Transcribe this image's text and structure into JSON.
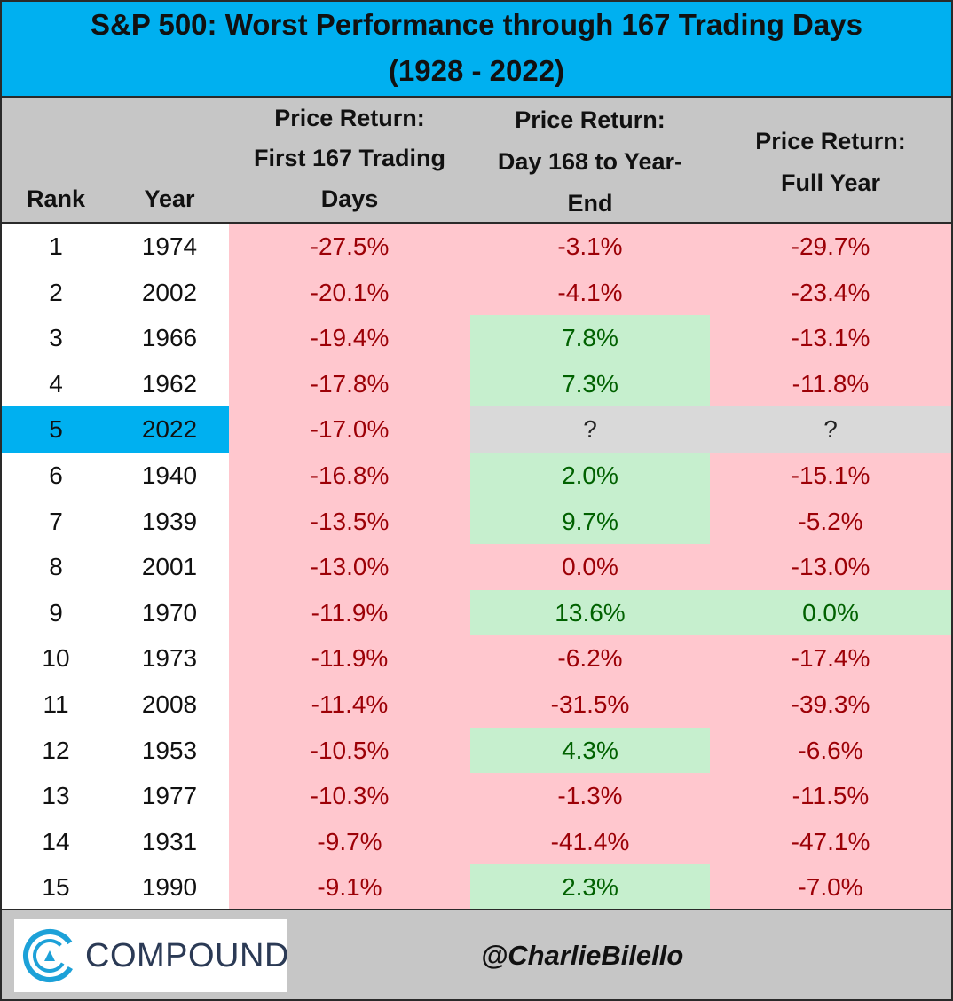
{
  "title": {
    "line1": "S&P 500: Worst Performance through 167 Trading Days",
    "line2": "(1928 - 2022)"
  },
  "headers": {
    "rank": "Rank",
    "year": "Year",
    "first": [
      "Price Return:",
      "First 167 Trading",
      "Days"
    ],
    "rest": [
      "Price Return:",
      "Day 168 to Year-",
      "End"
    ],
    "full": [
      "Price Return:",
      "Full Year"
    ]
  },
  "colors": {
    "title_bg": "#00b0f0",
    "header_bg": "#c6c6c6",
    "negative_bg": "#ffc7ce",
    "negative_text": "#9c0006",
    "positive_bg": "#c6efce",
    "positive_text": "#006100",
    "unknown_bg": "#d9d9d9",
    "highlight_bg": "#00b0f0"
  },
  "footer": {
    "logo_icon": "compound-c-logo-icon",
    "logo_text": "COMPOUND",
    "handle": "@CharlieBilello"
  },
  "chart_data": {
    "type": "table",
    "title": "S&P 500: Worst Performance through 167 Trading Days (1928 - 2022)",
    "columns": [
      "Rank",
      "Year",
      "Price Return: First 167 Trading Days",
      "Price Return: Day 168 to Year-End",
      "Price Return: Full Year"
    ],
    "highlight_rank": 5,
    "rows": [
      {
        "rank": "1",
        "year": "1974",
        "first": "-27.5%",
        "rest": "-3.1%",
        "full": "-29.7%"
      },
      {
        "rank": "2",
        "year": "2002",
        "first": "-20.1%",
        "rest": "-4.1%",
        "full": "-23.4%"
      },
      {
        "rank": "3",
        "year": "1966",
        "first": "-19.4%",
        "rest": "7.8%",
        "full": "-13.1%"
      },
      {
        "rank": "4",
        "year": "1962",
        "first": "-17.8%",
        "rest": "7.3%",
        "full": "-11.8%"
      },
      {
        "rank": "5",
        "year": "2022",
        "first": "-17.0%",
        "rest": "?",
        "full": "?"
      },
      {
        "rank": "6",
        "year": "1940",
        "first": "-16.8%",
        "rest": "2.0%",
        "full": "-15.1%"
      },
      {
        "rank": "7",
        "year": "1939",
        "first": "-13.5%",
        "rest": "9.7%",
        "full": "-5.2%"
      },
      {
        "rank": "8",
        "year": "2001",
        "first": "-13.0%",
        "rest": "0.0%",
        "full": "-13.0%"
      },
      {
        "rank": "9",
        "year": "1970",
        "first": "-11.9%",
        "rest": "13.6%",
        "full": "0.0%"
      },
      {
        "rank": "10",
        "year": "1973",
        "first": "-11.9%",
        "rest": "-6.2%",
        "full": "-17.4%"
      },
      {
        "rank": "11",
        "year": "2008",
        "first": "-11.4%",
        "rest": "-31.5%",
        "full": "-39.3%"
      },
      {
        "rank": "12",
        "year": "1953",
        "first": "-10.5%",
        "rest": "4.3%",
        "full": "-6.6%"
      },
      {
        "rank": "13",
        "year": "1977",
        "first": "-10.3%",
        "rest": "-1.3%",
        "full": "-11.5%"
      },
      {
        "rank": "14",
        "year": "1931",
        "first": "-9.7%",
        "rest": "-41.4%",
        "full": "-47.1%"
      },
      {
        "rank": "15",
        "year": "1990",
        "first": "-9.1%",
        "rest": "2.3%",
        "full": "-7.0%"
      }
    ],
    "cell_styles": {
      "1": {
        "first": "neg",
        "rest": "neg",
        "full": "neg"
      },
      "2": {
        "first": "neg",
        "rest": "neg",
        "full": "neg"
      },
      "3": {
        "first": "neg",
        "rest": "pos",
        "full": "neg"
      },
      "4": {
        "first": "neg",
        "rest": "pos",
        "full": "neg"
      },
      "5": {
        "first": "neg",
        "rest": "unk",
        "full": "unk"
      },
      "6": {
        "first": "neg",
        "rest": "pos",
        "full": "neg"
      },
      "7": {
        "first": "neg",
        "rest": "pos",
        "full": "neg"
      },
      "8": {
        "first": "neg",
        "rest": "neg",
        "full": "neg"
      },
      "9": {
        "first": "neg",
        "rest": "pos",
        "full": "pos"
      },
      "10": {
        "first": "neg",
        "rest": "neg",
        "full": "neg"
      },
      "11": {
        "first": "neg",
        "rest": "neg",
        "full": "neg"
      },
      "12": {
        "first": "neg",
        "rest": "pos",
        "full": "neg"
      },
      "13": {
        "first": "neg",
        "rest": "neg",
        "full": "neg"
      },
      "14": {
        "first": "neg",
        "rest": "neg",
        "full": "neg"
      },
      "15": {
        "first": "neg",
        "rest": "pos",
        "full": "neg"
      }
    }
  }
}
